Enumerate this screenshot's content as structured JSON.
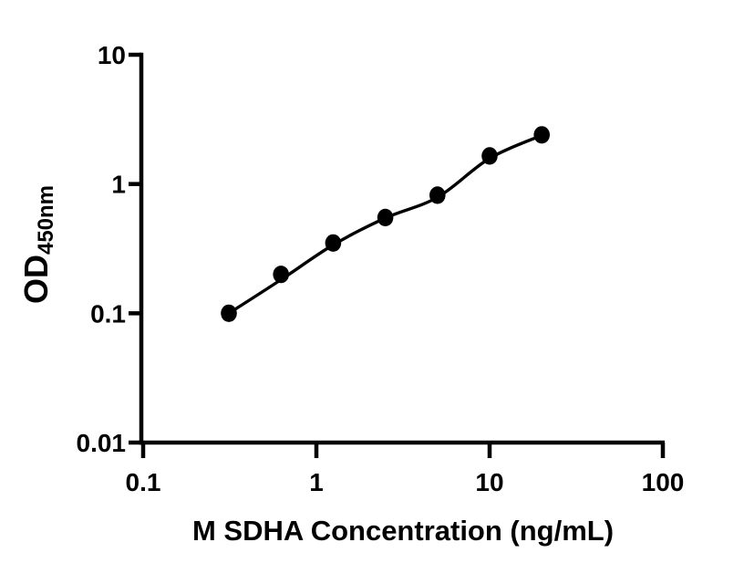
{
  "chart_data": {
    "type": "scatter",
    "title": "",
    "xlabel": "M SDHA Concentration (ng/mL)",
    "ylabel_main": "OD",
    "ylabel_sub": "450nm",
    "x_scale": "log",
    "y_scale": "log",
    "xlim": [
      0.1,
      100
    ],
    "ylim": [
      0.01,
      10
    ],
    "x_ticks": [
      {
        "value": 0.1,
        "label": "0.1"
      },
      {
        "value": 1,
        "label": "1"
      },
      {
        "value": 10,
        "label": "10"
      },
      {
        "value": 100,
        "label": "100"
      }
    ],
    "y_ticks": [
      {
        "value": 10,
        "label": "10"
      },
      {
        "value": 1,
        "label": "1"
      },
      {
        "value": 0.1,
        "label": "0.1"
      },
      {
        "value": 0.01,
        "label": "0.01"
      }
    ],
    "series": [
      {
        "name": "standard-curve-points",
        "x": [
          0.3125,
          0.625,
          1.25,
          2.5,
          5,
          10,
          20
        ],
        "y": [
          0.1,
          0.2,
          0.35,
          0.55,
          0.82,
          1.65,
          2.4
        ]
      }
    ],
    "fit_line": {
      "x": [
        0.3125,
        0.625,
        1.25,
        2.5,
        5,
        10,
        20
      ],
      "y": [
        0.1,
        0.182,
        0.338,
        0.546,
        0.79,
        1.58,
        2.38
      ]
    },
    "grid": "off",
    "legend": "none",
    "marker_color": "#000000",
    "line_color": "#000000",
    "axis_color": "#000000",
    "background_color": "#ffffff"
  }
}
